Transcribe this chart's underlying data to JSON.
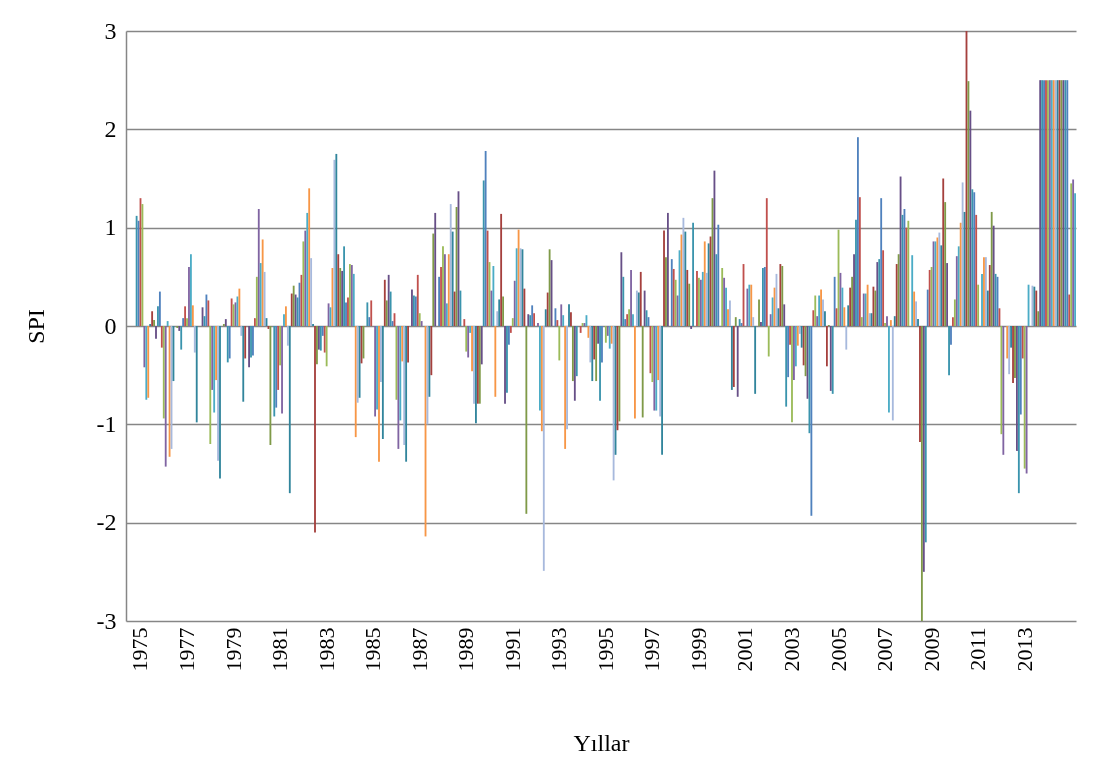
{
  "chart_data": {
    "type": "bar",
    "xlabel": "Yıllar",
    "ylabel": "SPI",
    "ylim": [
      -3,
      3
    ],
    "yticks": [
      -3,
      -2,
      -1,
      0,
      1,
      2,
      3
    ],
    "grid": "y",
    "categories": [
      null,
      null,
      null,
      null,
      null,
      null,
      null,
      "1975",
      null,
      null,
      null,
      null,
      null,
      null,
      null,
      null,
      null,
      null,
      null,
      null,
      null,
      null,
      null,
      null,
      null,
      null,
      null,
      null,
      null,
      null,
      null,
      "1977",
      null,
      null,
      null,
      null,
      null,
      null,
      null,
      null,
      null,
      null,
      null,
      null,
      null,
      null,
      null,
      null,
      null,
      null,
      null,
      null,
      null,
      null,
      null,
      "1979",
      null,
      null,
      null,
      null,
      null,
      null,
      null,
      null,
      null,
      null,
      null,
      null,
      null,
      null,
      null,
      null,
      null,
      null,
      null,
      null,
      null,
      null,
      null,
      "1981",
      null,
      null,
      null,
      null,
      null,
      null,
      null,
      null,
      null,
      null,
      null,
      null,
      null,
      null,
      null,
      null,
      null,
      null,
      null,
      null,
      null,
      null,
      null,
      "1983",
      null,
      null,
      null,
      null,
      null,
      null,
      null,
      null,
      null,
      null,
      null,
      null,
      null,
      null,
      null,
      null,
      null,
      null,
      null,
      null,
      null,
      null,
      null,
      "1985",
      null,
      null,
      null,
      null,
      null,
      null,
      null,
      null,
      null,
      null,
      null,
      null,
      null,
      null,
      null,
      null,
      null,
      null,
      null,
      null,
      null,
      null,
      null,
      "1987",
      null,
      null,
      null,
      null,
      null,
      null,
      null,
      null,
      null,
      null,
      null,
      null,
      null,
      null,
      null,
      null,
      null,
      null,
      null,
      null,
      null,
      null,
      null,
      "1989",
      null,
      null,
      null,
      null,
      null,
      null,
      null,
      null,
      null,
      null,
      null,
      null,
      null,
      null,
      null,
      null,
      null,
      null,
      null,
      null,
      null,
      null,
      null,
      "1991",
      null,
      null,
      null,
      null,
      null,
      null,
      null,
      null,
      null,
      null,
      null,
      null,
      null,
      null,
      null,
      null,
      null,
      null,
      null,
      null,
      null,
      null,
      null,
      "1993",
      null,
      null,
      null,
      null,
      null,
      null,
      null,
      null,
      null,
      null,
      null,
      null,
      null,
      null,
      null,
      null,
      null,
      null,
      null,
      null,
      null,
      null,
      null,
      "1995",
      null,
      null,
      null,
      null,
      null,
      null,
      null,
      null,
      null,
      null,
      null,
      null,
      null,
      null,
      null,
      null,
      null,
      null,
      null,
      null,
      null,
      null,
      null,
      "1997",
      null,
      null,
      null,
      null,
      null,
      null,
      null,
      null,
      null,
      null,
      null,
      null,
      null,
      null,
      null,
      null,
      null,
      null,
      null,
      null,
      null,
      null,
      null,
      "1999",
      null,
      null,
      null,
      null,
      null,
      null,
      null,
      null,
      null,
      null,
      null,
      null,
      null,
      null,
      null,
      null,
      null,
      null,
      null,
      null,
      null,
      null,
      null,
      "2001",
      null,
      null,
      null,
      null,
      null,
      null,
      null,
      null,
      null,
      null,
      null,
      null,
      null,
      null,
      null,
      null,
      null,
      null,
      null,
      null,
      null,
      null,
      null,
      "2003",
      null,
      null,
      null,
      null,
      null,
      null,
      null,
      null,
      null,
      null,
      null,
      null,
      null,
      null,
      null,
      null,
      null,
      null,
      null,
      null,
      null,
      null,
      null,
      "2005",
      null,
      null,
      null,
      null,
      null,
      null,
      null,
      null,
      null,
      null,
      null,
      null,
      null,
      null,
      null,
      null,
      null,
      null,
      null,
      null,
      null,
      null,
      null,
      "2007",
      null,
      null,
      null,
      null,
      null,
      null,
      null,
      null,
      null,
      null,
      null,
      null,
      null,
      null,
      null,
      null,
      null,
      null,
      null,
      null,
      null,
      null,
      null,
      "2009",
      null,
      null,
      null,
      null,
      null,
      null,
      null,
      null,
      null,
      null,
      null,
      null,
      null,
      null,
      null,
      null,
      null,
      null,
      null,
      null,
      null,
      null,
      null,
      "2011",
      null,
      null,
      null,
      null,
      null,
      null,
      null,
      null,
      null,
      null,
      null,
      null,
      null,
      null,
      null,
      null,
      null,
      null,
      null,
      null,
      null,
      null,
      null,
      "2013",
      null,
      null,
      null,
      null,
      null,
      null,
      null,
      null,
      null,
      null,
      null,
      null,
      null,
      null,
      null,
      null,
      null,
      null,
      null,
      null,
      null,
      null,
      null,
      null,
      null,
      null
    ],
    "values": [
      null,
      null,
      null,
      null,
      null,
      1.12,
      1.07,
      1.3,
      1.24,
      -0.42,
      -0.75,
      -0.73,
      0.02,
      0.15,
      0.06,
      -0.13,
      0.2,
      0.35,
      -0.22,
      -0.94,
      -1.43,
      0.05,
      -1.33,
      -1.25,
      -0.56,
      0,
      -0.02,
      -0.05,
      -0.24,
      0.08,
      0.2,
      0.08,
      0.6,
      0.73,
      0.21,
      -0.27,
      -0.98,
      0,
      0,
      0.19,
      0.1,
      0.32,
      0.26,
      -1.2,
      -0.65,
      -0.88,
      -0.55,
      -1.37,
      -1.55,
      0,
      0.02,
      0.07,
      -0.37,
      -0.33,
      0.28,
      0.22,
      0.24,
      0.3,
      0.38,
      -0.1,
      -0.77,
      -0.33,
      0,
      -0.42,
      -0.32,
      -0.3,
      0.08,
      0.5,
      1.19,
      0.64,
      0.88,
      0.55,
      0.08,
      -0.03,
      -1.21,
      0,
      -0.92,
      -0.83,
      -0.65,
      -0.4,
      -0.89,
      0.12,
      0.2,
      -0.2,
      -1.7,
      0.33,
      0.41,
      0.32,
      0.29,
      0.44,
      0.52,
      0.86,
      0.97,
      1.15,
      1.4,
      0.69,
      0.02,
      -2.1,
      -0.39,
      -0.24,
      -0.25,
      -0.1,
      -0.27,
      -0.41,
      0.23,
      0.19,
      0.59,
      1.69,
      1.75,
      0.73,
      0.59,
      0.56,
      0.81,
      0.24,
      0.29,
      0.63,
      0.62,
      0.53,
      -1.13,
      -0.78,
      -0.73,
      -0.38,
      -0.33,
      0,
      0.24,
      0.09,
      0.26,
      0,
      -0.92,
      -0.85,
      -1.38,
      -0.57,
      -1.15,
      0.47,
      0.26,
      0.52,
      0.35,
      0.05,
      0.13,
      -0.75,
      -1.25,
      -0.96,
      -0.36,
      -1.21,
      -1.38,
      -0.37,
      0,
      0.37,
      0.31,
      0.3,
      0.52,
      0.13,
      0.05,
      0,
      -2.14,
      -1.0,
      -0.72,
      -0.5,
      0.94,
      1.15,
      0,
      0.5,
      0.6,
      0.81,
      0.73,
      0.23,
      0.73,
      1.24,
      0.96,
      0.35,
      1.21,
      1.37,
      0.36,
      0,
      0.07,
      -0.26,
      -0.32,
      -0.07,
      -0.46,
      -0.79,
      -0.99,
      -0.79,
      -0.79,
      -0.39,
      1.48,
      1.78,
      0.97,
      0.65,
      0.36,
      0.61,
      -0.72,
      0.15,
      0.27,
      1.14,
      0.3,
      -0.79,
      -0.68,
      -0.19,
      -0.07,
      0.08,
      0.46,
      0.79,
      0.98,
      0.79,
      0.78,
      0.38,
      -1.91,
      0.12,
      0.11,
      0.21,
      0.13,
      0,
      0.03,
      -0.86,
      -1.07,
      -2.49,
      0.17,
      0.34,
      0.78,
      0.67,
      0,
      0.18,
      0.06,
      -0.35,
      0.22,
      0.11,
      -1.25,
      -1.05,
      0.22,
      0.14,
      -0.56,
      -0.76,
      -0.51,
      0,
      -0.07,
      0.03,
      0.03,
      0.11,
      -0.12,
      -0.37,
      -0.56,
      -0.34,
      -0.56,
      -0.18,
      -0.76,
      -0.37,
      0,
      -0.17,
      -0.1,
      -0.23,
      -0.18,
      -1.57,
      -1.31,
      -1.06,
      -0.97,
      0.75,
      0.5,
      0.07,
      0.12,
      0.17,
      0.57,
      0.12,
      -0.94,
      0.36,
      0.34,
      0.55,
      -0.93,
      0.36,
      0.16,
      0.09,
      -0.48,
      -0.57,
      -0.86,
      -0.86,
      -0.55,
      -0.92,
      -1.31,
      0.97,
      0.7,
      1.15,
      0,
      0.68,
      0.58,
      0.47,
      0.31,
      0.77,
      0.93,
      1.1,
      0.96,
      0.57,
      0.43,
      -0.03,
      1.05,
      0,
      0.56,
      0.49,
      0.47,
      0.55,
      0.86,
      0.54,
      0.84,
      0.91,
      1.3,
      1.58,
      0.73,
      1.03,
      0,
      0.59,
      0.49,
      0.39,
      0.17,
      0.26,
      -0.65,
      -0.62,
      0.09,
      -0.72,
      0.07,
      0.03,
      0.63,
      0,
      0.38,
      0.42,
      0.42,
      0.09,
      -0.69,
      0,
      0.27,
      0.04,
      0.59,
      0.6,
      1.3,
      -0.31,
      0.12,
      0.29,
      0.39,
      0.53,
      0.18,
      0.63,
      0.61,
      0.22,
      -0.82,
      -0.52,
      -0.19,
      -0.98,
      -0.55,
      -0.41,
      -0.2,
      -0.08,
      -0.22,
      -0.4,
      -0.51,
      -0.74,
      -1.09,
      -1.93,
      0.16,
      0.31,
      0.1,
      0.31,
      0.37,
      0.27,
      0.15,
      -0.41,
      0.01,
      -0.66,
      -0.69,
      0.5,
      0.18,
      0.98,
      0.54,
      0.39,
      0.19,
      -0.24,
      0.21,
      0.39,
      0.5,
      0.73,
      1.08,
      1.92,
      1.31,
      0.09,
      0.33,
      0.33,
      0.42,
      0.13,
      0.13,
      0.4,
      0.36,
      0.65,
      0.68,
      1.3,
      0.77,
      0.03,
      0.1,
      -0.88,
      0.06,
      -0.96,
      0.1,
      0.63,
      0.73,
      1.52,
      1.13,
      1.19,
      1.0,
      1.07,
      0,
      0.72,
      0.35,
      0.25,
      0.07,
      -1.18,
      -3.0,
      -2.5,
      -2.2,
      0.37,
      0.57,
      0.6,
      0.86,
      0.86,
      0.9,
      0.95,
      0.82,
      1.5,
      1.26,
      0.64,
      -0.5,
      -0.19,
      0.09,
      0.27,
      0.71,
      0.81,
      1.05,
      1.46,
      1.16,
      3.0,
      2.49,
      2.19,
      1.39,
      1.36,
      1.13,
      0.42,
      0,
      0.53,
      0.7,
      0.7,
      0.36,
      0.62,
      1.16,
      1.02,
      0.53,
      0.5,
      0.18,
      -1.1,
      -1.31,
      0,
      -0.33,
      -0.49,
      -0.22,
      -0.58,
      -0.53,
      -1.27,
      -1.7,
      -0.9,
      -0.33,
      -1.45,
      -1.5,
      0.42,
      0,
      0.41,
      0.4,
      0.36,
      0.15,
      2.5,
      2.5,
      2.5,
      2.5,
      2.5,
      2.5,
      2.5,
      2.5,
      2.5,
      2.5,
      2.5,
      2.5,
      2.5,
      2.5,
      2.5,
      0.32,
      1.45,
      1.49,
      1.35
    ],
    "colors": [
      "#a7b9dd",
      "#31859c",
      "#a5403d",
      "#7f9a48",
      "#674f87",
      "#3a94ad",
      "#4f81bd",
      "#c0504d",
      "#9bbb59",
      "#8064a2",
      "#4bacc6",
      "#f79646",
      "#31859c",
      "#a5403d",
      "#7f9a48",
      "#674f87",
      "#3a94ad",
      "#4f81bd",
      "#c0504d",
      "#9bbb59",
      "#8064a2",
      "#4bacc6",
      "#f79646",
      "#a7b9dd",
      "#31859c",
      "#a5403d",
      "#7f9a48",
      "#674f87",
      "#3a94ad",
      "#4f81bd",
      "#c0504d",
      "#9bbb59",
      "#8064a2",
      "#4bacc6",
      "#f79646",
      "#a7b9dd",
      "#31859c",
      "#a5403d",
      "#7f9a48",
      "#674f87",
      "#3a94ad",
      "#4f81bd",
      "#c0504d",
      "#9bbb59",
      "#8064a2",
      "#4bacc6",
      "#f79646",
      "#a7b9dd",
      "#31859c",
      "#a5403d",
      "#7f9a48",
      "#674f87",
      "#3a94ad",
      "#4f81bd",
      "#c0504d",
      "#9bbb59",
      "#8064a2",
      "#4bacc6",
      "#f79646",
      "#a7b9dd",
      "#31859c",
      "#a5403d",
      "#7f9a48",
      "#674f87",
      "#3a94ad",
      "#4f81bd",
      "#c0504d",
      "#9bbb59",
      "#8064a2",
      "#4bacc6",
      "#f79646",
      "#a7b9dd",
      "#31859c",
      "#a5403d",
      "#7f9a48",
      "#674f87",
      "#3a94ad",
      "#4f81bd",
      "#c0504d",
      "#9bbb59",
      "#8064a2",
      "#4bacc6",
      "#f79646",
      "#a7b9dd",
      "#31859c",
      "#a5403d",
      "#7f9a48",
      "#674f87",
      "#3a94ad",
      "#4f81bd",
      "#c0504d",
      "#9bbb59",
      "#8064a2",
      "#4bacc6",
      "#f79646",
      "#a7b9dd",
      "#31859c",
      "#a5403d",
      "#7f9a48",
      "#674f87",
      "#3a94ad",
      "#4f81bd",
      "#c0504d",
      "#9bbb59",
      "#8064a2",
      "#4bacc6",
      "#f79646",
      "#a7b9dd",
      "#31859c",
      "#a5403d",
      "#7f9a48",
      "#674f87",
      "#3a94ad",
      "#4f81bd",
      "#c0504d",
      "#9bbb59",
      "#8064a2",
      "#4bacc6",
      "#f79646",
      "#a7b9dd",
      "#31859c",
      "#a5403d",
      "#7f9a48",
      "#674f87",
      "#3a94ad",
      "#4f81bd",
      "#c0504d",
      "#9bbb59",
      "#8064a2",
      "#4bacc6",
      "#f79646",
      "#a7b9dd",
      "#31859c",
      "#a5403d",
      "#7f9a48",
      "#674f87",
      "#3a94ad",
      "#4f81bd",
      "#c0504d",
      "#9bbb59",
      "#8064a2",
      "#4bacc6",
      "#f79646",
      "#a7b9dd",
      "#31859c",
      "#a5403d",
      "#7f9a48",
      "#674f87",
      "#3a94ad",
      "#4f81bd",
      "#c0504d",
      "#9bbb59",
      "#8064a2",
      "#4bacc6",
      "#f79646",
      "#a7b9dd",
      "#31859c",
      "#a5403d",
      "#7f9a48",
      "#674f87",
      "#3a94ad",
      "#4f81bd",
      "#c0504d",
      "#9bbb59",
      "#8064a2",
      "#4bacc6",
      "#f79646",
      "#a7b9dd",
      "#31859c",
      "#a5403d",
      "#7f9a48",
      "#674f87",
      "#3a94ad",
      "#4f81bd",
      "#c0504d",
      "#9bbb59",
      "#8064a2",
      "#4bacc6",
      "#f79646",
      "#a7b9dd",
      "#31859c",
      "#a5403d",
      "#7f9a48",
      "#674f87",
      "#3a94ad",
      "#4f81bd",
      "#c0504d",
      "#9bbb59",
      "#8064a2",
      "#4bacc6",
      "#f79646",
      "#a7b9dd",
      "#31859c",
      "#a5403d",
      "#7f9a48",
      "#674f87",
      "#3a94ad",
      "#4f81bd",
      "#c0504d",
      "#9bbb59",
      "#8064a2",
      "#4bacc6",
      "#f79646",
      "#a7b9dd",
      "#31859c",
      "#a5403d",
      "#7f9a48",
      "#674f87",
      "#3a94ad",
      "#4f81bd",
      "#c0504d",
      "#9bbb59",
      "#8064a2",
      "#4bacc6",
      "#f79646",
      "#a7b9dd",
      "#31859c",
      "#a5403d",
      "#7f9a48",
      "#674f87",
      "#3a94ad",
      "#4f81bd",
      "#c0504d",
      "#9bbb59",
      "#8064a2",
      "#4bacc6",
      "#f79646",
      "#a7b9dd",
      "#31859c",
      "#a5403d",
      "#7f9a48",
      "#674f87",
      "#3a94ad",
      "#4f81bd",
      "#c0504d",
      "#9bbb59",
      "#8064a2",
      "#4bacc6",
      "#f79646",
      "#a7b9dd",
      "#31859c",
      "#a5403d",
      "#7f9a48",
      "#674f87",
      "#3a94ad",
      "#4f81bd",
      "#c0504d",
      "#9bbb59",
      "#8064a2",
      "#4bacc6",
      "#f79646",
      "#a7b9dd",
      "#31859c",
      "#a5403d",
      "#7f9a48",
      "#674f87",
      "#3a94ad",
      "#4f81bd",
      "#c0504d",
      "#9bbb59",
      "#8064a2",
      "#4bacc6",
      "#f79646",
      "#a7b9dd",
      "#31859c",
      "#a5403d",
      "#7f9a48",
      "#674f87",
      "#3a94ad",
      "#4f81bd",
      "#c0504d",
      "#9bbb59",
      "#8064a2",
      "#4bacc6",
      "#f79646",
      "#a7b9dd",
      "#31859c",
      "#a5403d",
      "#7f9a48",
      "#674f87",
      "#3a94ad",
      "#4f81bd",
      "#c0504d",
      "#9bbb59",
      "#8064a2",
      "#4bacc6",
      "#f79646",
      "#a7b9dd",
      "#31859c",
      "#a5403d",
      "#7f9a48",
      "#674f87",
      "#3a94ad",
      "#4f81bd",
      "#c0504d",
      "#9bbb59",
      "#8064a2",
      "#4bacc6",
      "#f79646",
      "#a7b9dd",
      "#31859c",
      "#a5403d",
      "#7f9a48",
      "#674f87",
      "#3a94ad",
      "#4f81bd",
      "#c0504d",
      "#9bbb59",
      "#8064a2",
      "#4bacc6",
      "#f79646",
      "#a7b9dd",
      "#31859c",
      "#a5403d",
      "#7f9a48",
      "#674f87",
      "#3a94ad",
      "#4f81bd",
      "#c0504d",
      "#9bbb59",
      "#8064a2",
      "#4bacc6",
      "#f79646",
      "#a7b9dd",
      "#31859c",
      "#a5403d",
      "#7f9a48",
      "#674f87",
      "#3a94ad",
      "#4f81bd",
      "#c0504d",
      "#9bbb59",
      "#8064a2",
      "#4bacc6",
      "#f79646",
      "#a7b9dd",
      "#31859c",
      "#a5403d",
      "#7f9a48",
      "#674f87",
      "#3a94ad",
      "#4f81bd",
      "#c0504d",
      "#9bbb59",
      "#8064a2",
      "#4bacc6",
      "#f79646",
      "#a7b9dd",
      "#31859c",
      "#a5403d",
      "#7f9a48",
      "#674f87",
      "#3a94ad",
      "#4f81bd",
      "#c0504d",
      "#9bbb59",
      "#8064a2",
      "#4bacc6",
      "#f79646",
      "#a7b9dd",
      "#31859c",
      "#a5403d",
      "#7f9a48",
      "#674f87",
      "#3a94ad",
      "#4f81bd",
      "#c0504d",
      "#9bbb59",
      "#8064a2",
      "#4bacc6",
      "#f79646",
      "#a7b9dd",
      "#31859c",
      "#a5403d",
      "#7f9a48",
      "#674f87",
      "#3a94ad",
      "#4f81bd",
      "#c0504d",
      "#9bbb59",
      "#8064a2",
      "#4bacc6",
      "#f79646",
      "#a7b9dd",
      "#31859c",
      "#a5403d",
      "#7f9a48",
      "#674f87",
      "#3a94ad",
      "#4f81bd",
      "#c0504d",
      "#9bbb59",
      "#8064a2",
      "#4bacc6",
      "#f79646",
      "#a7b9dd",
      "#31859c",
      "#a5403d",
      "#7f9a48",
      "#674f87",
      "#3a94ad",
      "#4f81bd",
      "#c0504d",
      "#9bbb59",
      "#8064a2",
      "#4bacc6",
      "#f79646",
      "#a7b9dd",
      "#31859c",
      "#a5403d",
      "#7f9a48",
      "#674f87",
      "#3a94ad",
      "#4f81bd",
      "#c0504d",
      "#9bbb59",
      "#8064a2",
      "#4bacc6",
      "#f79646",
      "#a7b9dd",
      "#31859c",
      "#a5403d",
      "#7f9a48",
      "#674f87",
      "#3a94ad",
      "#4f81bd",
      "#c0504d",
      "#9bbb59",
      "#8064a2",
      "#4bacc6",
      "#f79646",
      "#a7b9dd",
      "#31859c",
      "#a5403d",
      "#7f9a48",
      "#674f87",
      "#3a94ad",
      "#4f81bd",
      "#c0504d",
      "#9bbb59",
      "#8064a2",
      "#4bacc6",
      "#f79646",
      "#a7b9dd",
      "#31859c",
      "#a5403d",
      "#7f9a48",
      "#674f87",
      "#3a94ad",
      "#4f81bd",
      "#c0504d",
      "#9bbb59",
      "#8064a2",
      "#4bacc6",
      "#f79646",
      "#a7b9dd",
      "#31859c",
      "#a5403d",
      "#7f9a48",
      "#674f87",
      "#3a94ad",
      "#4f81bd",
      "#c0504d",
      "#9bbb59",
      "#8064a2",
      "#4bacc6",
      "#f79646",
      "#a7b9dd",
      "#31859c",
      "#a5403d",
      "#7f9a48",
      "#674f87",
      "#3a94ad",
      "#4f81bd",
      "#c0504d",
      "#9bbb59",
      "#8064a2",
      "#4bacc6",
      "#f79646",
      "#a7b9dd",
      "#31859c",
      "#a5403d",
      "#7f9a48",
      "#674f87",
      "#3a94ad",
      "#4f81bd",
      "#c0504d",
      "#9bbb59",
      "#8064a2",
      "#4bacc6"
    ]
  }
}
